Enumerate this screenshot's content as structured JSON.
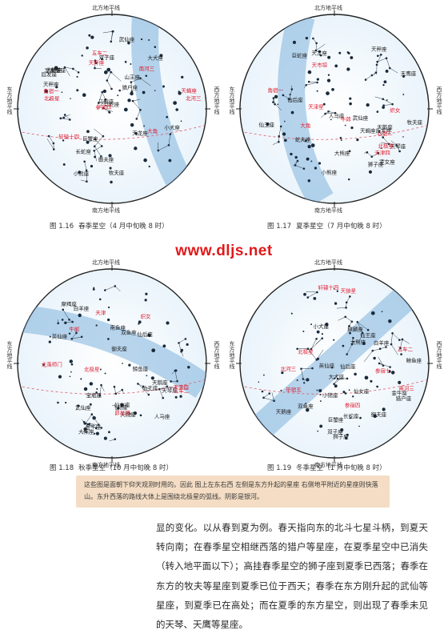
{
  "watermark": "www.dljs.net",
  "maps": [
    {
      "key": "spring",
      "figure": "图 1.16",
      "caption": "春季星空（4 月中旬晚 8 时）",
      "horizons": {
        "top": "北方地平线",
        "bottom": "南方地平线",
        "left": "东方地平线",
        "right": "西方地平线"
      },
      "labels_black": [
        "山王座",
        "小熊座",
        "武仙座",
        "天龙座",
        "大熊座",
        "巨蛇座",
        "牧夫座",
        "后发座",
        "狮子座",
        "室女座",
        "天秤座",
        "长蛇座",
        "乌鸦座",
        "小犬座",
        "巨蟹座",
        "双子座",
        "大犬座",
        "猎户座",
        "御夫座"
      ],
      "labels_red": [
        "北极星",
        "五车二",
        "大角",
        "轩辕十四",
        "角宿一",
        "天秤座",
        "天蝎座",
        "南河三",
        "北河三",
        "参宿四"
      ]
    },
    {
      "key": "summer",
      "figure": "图 1.17",
      "caption": "夏季星空（7 月中旬晚 8 时）",
      "horizons": {
        "top": "北方地平线",
        "bottom": "南方地平线",
        "left": "东方地平线",
        "right": "西方地平线"
      },
      "labels_black": [
        "仙后座",
        "仙王座",
        "小熊座",
        "天龙座",
        "狮子座",
        "大熊座",
        "天琴座",
        "牧夫座",
        "天鹅座",
        "武仙座",
        "室女座",
        "巨蛇座",
        "蛇夫座",
        "天鹰座",
        "天蝎座",
        "人马座",
        "天秤座",
        "后发座"
      ],
      "labels_red": [
        "北极星",
        "天津四",
        "织女",
        "牛郎",
        "天津星",
        "大角",
        "角宿一",
        "心宿二",
        "天市垣"
      ]
    },
    {
      "key": "autumn",
      "figure": "图 1.18",
      "caption": "秋季星空（10 月中旬晚 8 时）",
      "horizons": {
        "top": "北方地平线",
        "bottom": "南方地平线",
        "left": "东方地平线",
        "right": "西方地平线"
      },
      "labels_black": [
        "大熊座",
        "仙后座",
        "仙王座",
        "武仙座",
        "英仙座",
        "仙女座",
        "白羊座",
        "飞马座",
        "天鹅座",
        "天琴座",
        "天鹰座",
        "宝瓶座",
        "摩羯座",
        "南鱼座",
        "双鱼座",
        "鲸鱼座",
        "人马座",
        "御夫座",
        "金牛座"
      ],
      "labels_red": [
        "北极星",
        "五车二",
        "昴星团",
        "天津四",
        "织女",
        "牛郎",
        "北落师门",
        "天津"
      ]
    },
    {
      "key": "winter",
      "figure": "图 1.19",
      "caption": "冬季星空（1 月中旬晚 8 时）",
      "horizons": {
        "top": "北方地平线",
        "bottom": "南方地平线",
        "left": "东方地平线",
        "right": "西方地平线"
      },
      "labels_black": [
        "小熊座",
        "大熊座",
        "仙后座",
        "仙王座",
        "英仙座",
        "仙女座",
        "御夫座",
        "双子座",
        "狮子座",
        "巨蟹座",
        "金牛座",
        "白羊座",
        "猎户座",
        "长蛇座",
        "小犬座",
        "麒麟座",
        "大犬座",
        "鲸鱼座",
        "双鱼座",
        "天鹅座"
      ],
      "labels_red": [
        "北极星",
        "五车二",
        "北河三",
        "南河三",
        "轩辕十四",
        "参宿四",
        "参宿七",
        "毕宿五",
        "天狼星"
      ]
    }
  ],
  "note": "这些图是面朝下仰天观测时用的。因此 图上左东右西 左侧是东方升起的星座 右侧地平附近的星座则快落山。东升西落的路线大体上是围绕北极星的弧线。阴影是银河。",
  "body": "显的变化。以从春到夏为例。春天指向东的北斗七星斗柄，到夏天转向南；在春季星空相继西落的猎户等星座，在夏季星空中已消失（转入地平面以下）；高挂春季星空的狮子座到夏季已西落；春季在东方的牧夫等星座到夏季已位于西天；春季在东方刚升起的武仙等星座，到夏季已在高处；而在夏季的东方星空，则出现了春季未见的天琴、天鹰等星座。"
}
